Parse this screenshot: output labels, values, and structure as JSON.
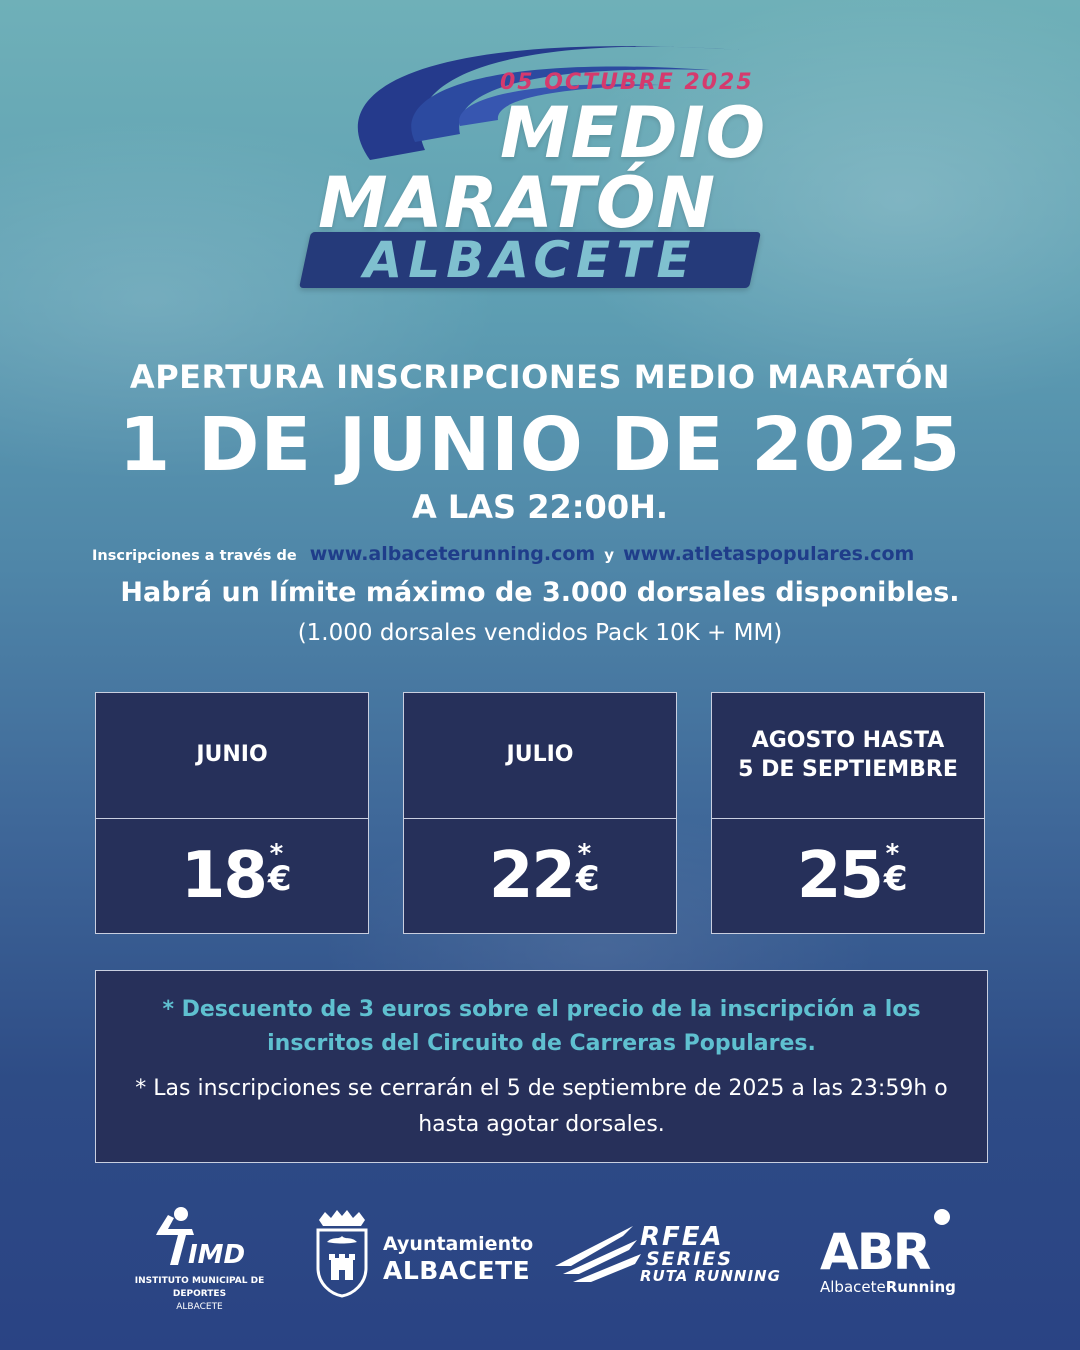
{
  "logo": {
    "date": "05 OCTUBRE 2025",
    "line1": "MEDIO",
    "line2": "MARATÓN",
    "city": "ALBACETE",
    "swoosh_color": "#2a3f8f",
    "accent_color": "#d53a6d"
  },
  "announcement": {
    "headline": "APERTURA INSCRIPCIONES MEDIO MARATÓN",
    "date": "1 DE JUNIO DE 2025",
    "time": "A LAS 22:00H."
  },
  "registration": {
    "prefix": "Inscripciones a través de",
    "link1": "www.albaceterunning.com",
    "conjunction": "y",
    "link2": "www.atletaspopulares.com"
  },
  "limit": "Habrá un límite máximo de 3.000 dorsales disponibles.",
  "sold": "(1.000 dorsales vendidos Pack 10K + MM)",
  "prices": [
    {
      "period": "JUNIO",
      "value": "18",
      "currency": "€",
      "asterisk": "*"
    },
    {
      "period": "JULIO",
      "value": "22",
      "currency": "€",
      "asterisk": "*"
    },
    {
      "period_line1": "AGOSTO HASTA",
      "period_line2": "5 DE SEPTIEMBRE",
      "value": "25",
      "currency": "€",
      "asterisk": "*"
    }
  ],
  "notes": {
    "discount": "* Descuento de 3 euros sobre el precio de la inscripción a los inscritos del Circuito de Carreras Populares.",
    "closing": "* Las inscripciones se cerrarán el 5 de septiembre de 2025 a las 23:59h o hasta agotar dorsales."
  },
  "sponsors": {
    "imd": {
      "mark": "IMD",
      "caption": "INSTITUTO MUNICIPAL DE DEPORTES",
      "city": "ALBACETE"
    },
    "ayuntamiento": {
      "line1": "Ayuntamiento",
      "line2": "ALBACETE"
    },
    "rfea": {
      "line1": "RFEA",
      "line2": "SERIES",
      "line3": "RUTA RUNNING"
    },
    "abr": {
      "mark": "ABR",
      "text_a": "Albacete",
      "text_b": "Running"
    }
  },
  "colors": {
    "dark_panel": "#26305a",
    "note_accent": "#5fc0d0",
    "link_blue": "#1f3d8a"
  }
}
